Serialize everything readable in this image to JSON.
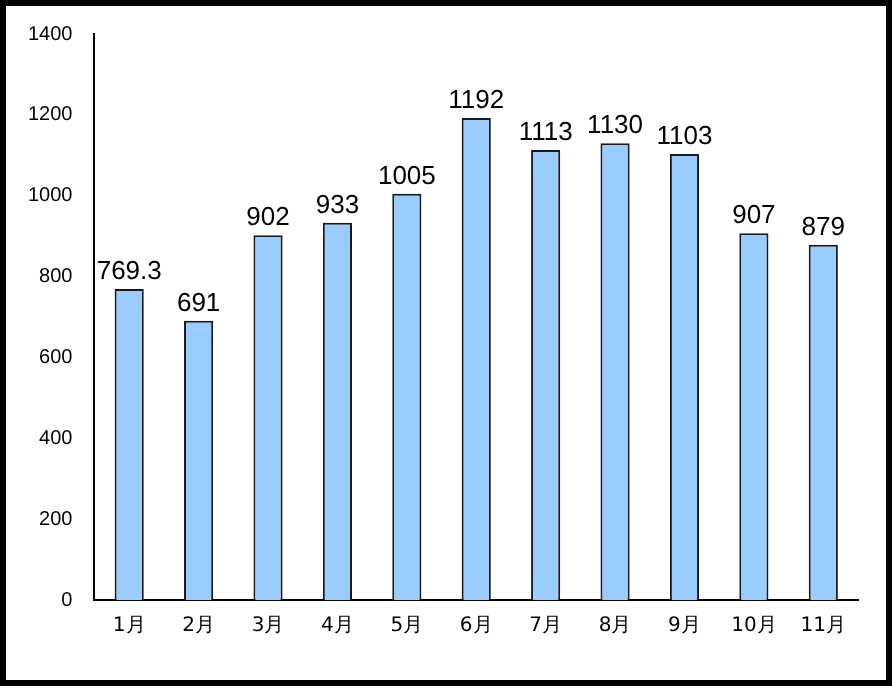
{
  "chart_data": {
    "type": "bar",
    "categories": [
      "1月",
      "2月",
      "3月",
      "4月",
      "5月",
      "6月",
      "7月",
      "8月",
      "9月",
      "10月",
      "11月"
    ],
    "values": [
      769.3,
      691,
      902,
      933,
      1005,
      1192,
      1113,
      1130,
      1103,
      907,
      879
    ],
    "color": "#99ccff",
    "ylim": [
      0,
      1400
    ],
    "yticks": [
      0,
      200,
      400,
      600,
      800,
      1000,
      1200,
      1400
    ],
    "grid": false,
    "legend": false,
    "data_labels": true
  }
}
